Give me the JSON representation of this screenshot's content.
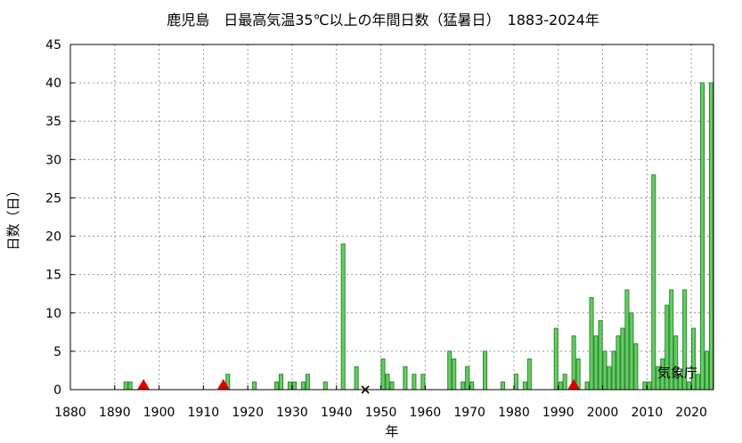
{
  "chart_data": {
    "type": "bar",
    "title": "鹿児島　日最高気温35℃以上の年間日数（猛暑日）　1883-2024年",
    "xlabel": "年",
    "ylabel": "日数（日）",
    "credit": "気象庁",
    "xlim": [
      1880,
      2025
    ],
    "ylim": [
      0,
      45
    ],
    "xticks": [
      1880,
      1890,
      1900,
      1910,
      1920,
      1930,
      1940,
      1950,
      1960,
      1970,
      1980,
      1990,
      2000,
      2010,
      2020
    ],
    "yticks": [
      0,
      5,
      10,
      15,
      20,
      25,
      30,
      35,
      40,
      45
    ],
    "grid": true,
    "bar_color": "#66cc66",
    "bar_edge_color": "#2e8b2e",
    "marker_color": "#dd0000",
    "x": [
      1892,
      1893,
      1915,
      1921,
      1926,
      1927,
      1929,
      1930,
      1932,
      1933,
      1937,
      1941,
      1944,
      1950,
      1951,
      1952,
      1955,
      1957,
      1959,
      1965,
      1966,
      1968,
      1969,
      1970,
      1973,
      1977,
      1980,
      1982,
      1983,
      1989,
      1990,
      1991,
      1993,
      1994,
      1996,
      1997,
      1998,
      1999,
      2000,
      2001,
      2002,
      2003,
      2004,
      2005,
      2006,
      2007,
      2008,
      2009,
      2010,
      2011,
      2012,
      2013,
      2014,
      2015,
      2016,
      2017,
      2018,
      2019,
      2020,
      2021,
      2022,
      2023,
      2024
    ],
    "values": [
      1,
      1,
      2,
      1,
      1,
      2,
      1,
      1,
      1,
      2,
      1,
      19,
      3,
      4,
      2,
      1,
      3,
      2,
      2,
      5,
      4,
      1,
      3,
      1,
      5,
      1,
      2,
      1,
      4,
      8,
      1,
      2,
      7,
      4,
      1,
      12,
      7,
      9,
      5,
      3,
      5,
      7,
      8,
      13,
      10,
      6,
      0,
      1,
      1,
      28,
      3,
      4,
      11,
      13,
      7,
      2,
      13,
      1,
      8,
      2,
      40,
      5,
      40
    ],
    "station_moves": [
      1896.5,
      1914.5,
      1993.5
    ],
    "missing_marker": [
      1946.5
    ]
  }
}
